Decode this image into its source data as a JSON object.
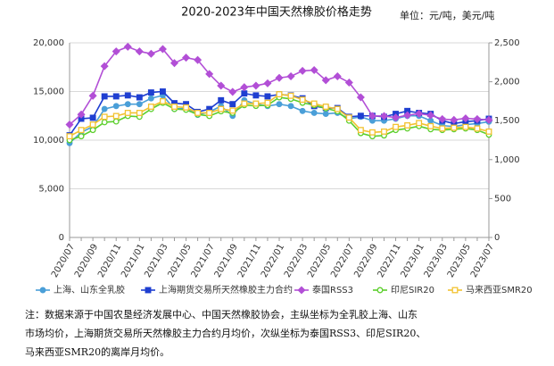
{
  "chart_data": {
    "type": "line",
    "title": "2020-2023年中国天然橡胶价格走势",
    "unit": "单位：元/吨，美元/吨",
    "categories": [
      "2020/07",
      null,
      "2020/09",
      null,
      "2020/11",
      null,
      "2021/01",
      null,
      "2021/03",
      null,
      "2021/05",
      null,
      "2021/07",
      null,
      "2021/09",
      null,
      "2021/11",
      null,
      "2022/01",
      null,
      "2022/03",
      null,
      "2022/05",
      null,
      "2022/07",
      null,
      "2022/09",
      null,
      "2022/11",
      null,
      "2023/01",
      null,
      "2023/03",
      null,
      "2023/05",
      null,
      "2023/07"
    ],
    "ylim": [
      0,
      20000
    ],
    "yticks": [
      0,
      {
        "value": 5000,
        "label": "5,000"
      },
      {
        "value": 10000,
        "label": "10,000"
      },
      {
        "value": 15000,
        "label": "15,000"
      },
      {
        "value": 20000,
        "label": "20,000"
      }
    ],
    "y2lim": [
      0,
      2500
    ],
    "y2ticks": [
      0,
      500,
      {
        "value": 1000,
        "label": "1,000"
      },
      {
        "value": 1500,
        "label": "1,500"
      },
      {
        "value": 2000,
        "label": "2,000"
      },
      {
        "value": 2500,
        "label": "2,500"
      }
    ],
    "grid": true,
    "series": [
      {
        "name": "上海、山东全乳胶",
        "color": "#4a9fd8",
        "marker": "circle",
        "hollow": false,
        "axis": "y",
        "values": [
          9700,
          10800,
          11400,
          13200,
          13500,
          13700,
          13700,
          14300,
          14600,
          13200,
          13300,
          12600,
          12900,
          13500,
          12500,
          14100,
          13700,
          13500,
          13700,
          13500,
          13000,
          12800,
          12700,
          12800,
          12200,
          12400,
          12000,
          12000,
          12200,
          12500,
          12500,
          12000,
          11500,
          11400,
          11600,
          11700,
          11900
        ]
      },
      {
        "name": "上海期货交易所天然橡胶主力合约",
        "color": "#1f3fd1",
        "marker": "square",
        "hollow": false,
        "axis": "y",
        "values": [
          10500,
          12200,
          12300,
          14500,
          14500,
          14600,
          14400,
          14900,
          15000,
          13800,
          13700,
          12900,
          13200,
          14100,
          13700,
          14800,
          14600,
          14500,
          14700,
          14600,
          14300,
          13500,
          13300,
          13300,
          12400,
          12500,
          12500,
          12400,
          12700,
          13000,
          12800,
          12700,
          12000,
          11700,
          11900,
          12000,
          12200
        ]
      },
      {
        "name": "泰国RSS3",
        "color": "#b24fd6",
        "marker": "diamond",
        "hollow": false,
        "axis": "y2",
        "values": [
          1450,
          1580,
          1820,
          2200,
          2390,
          2450,
          2390,
          2360,
          2420,
          2240,
          2310,
          2280,
          2100,
          1950,
          1870,
          1930,
          1950,
          1980,
          2050,
          2070,
          2140,
          2150,
          2020,
          2070,
          1990,
          1800,
          1560,
          1560,
          1540,
          1570,
          1590,
          1570,
          1520,
          1510,
          1530,
          1520,
          1510
        ]
      },
      {
        "name": "印尼SIR20",
        "color": "#5ccf2c",
        "marker": "circle",
        "hollow": true,
        "axis": "y2",
        "values": [
          1250,
          1300,
          1380,
          1480,
          1490,
          1560,
          1550,
          1650,
          1730,
          1650,
          1640,
          1580,
          1560,
          1620,
          1600,
          1700,
          1690,
          1700,
          1800,
          1780,
          1730,
          1700,
          1660,
          1620,
          1500,
          1340,
          1300,
          1310,
          1380,
          1400,
          1430,
          1390,
          1380,
          1390,
          1400,
          1380,
          1320
        ]
      },
      {
        "name": "马来西亚SMR20",
        "color": "#f2c230",
        "marker": "square",
        "hollow": true,
        "axis": "y2",
        "values": [
          1300,
          1380,
          1450,
          1550,
          1560,
          1600,
          1600,
          1680,
          1750,
          1680,
          1670,
          1600,
          1600,
          1650,
          1630,
          1720,
          1720,
          1730,
          1840,
          1820,
          1770,
          1720,
          1680,
          1650,
          1540,
          1380,
          1350,
          1360,
          1420,
          1440,
          1470,
          1430,
          1400,
          1410,
          1420,
          1400,
          1360
        ]
      }
    ],
    "notes": [
      "注：数据来源于中国农垦经济发展中心、中国天然橡胶协会，主纵坐标为全乳胶上海、山东",
      "市场均价，上海期货交易所天然橡胶主力合约月均价，次纵坐标为泰国RSS3、印尼SIR20、",
      "马来西亚SMR20的离岸月均价。"
    ]
  }
}
